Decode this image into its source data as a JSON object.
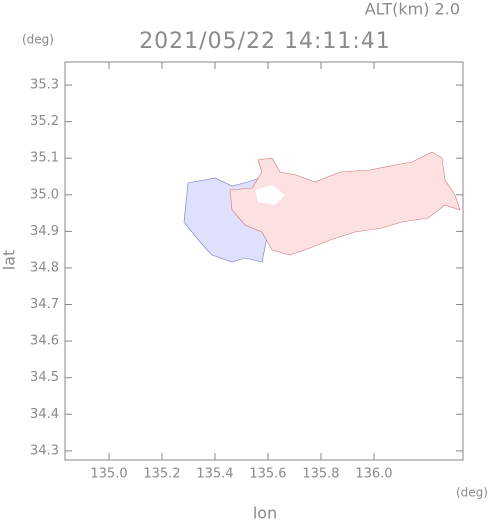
{
  "chart_data": {
    "type": "map",
    "title": "2021/05/22 14:11:41",
    "annotation": "ALT(km) 2.0",
    "xlabel": "lon",
    "ylabel": "lat",
    "x_unit": "(deg)",
    "y_unit": "(deg)",
    "xlim": [
      134.834,
      136.336
    ],
    "ylim": [
      34.275,
      35.363
    ],
    "xticks": [
      {
        "value": 135.0,
        "label": "135.0"
      },
      135.2,
      135.4,
      135.6,
      135.8,
      {
        "value": 136.0,
        "label": "136.0"
      }
    ],
    "yticks": [
      34.3,
      34.4,
      34.5,
      34.6,
      34.7,
      34.8,
      34.9,
      {
        "value": 35.0,
        "label": "35.0"
      },
      35.1,
      35.2,
      35.3
    ]
  }
}
